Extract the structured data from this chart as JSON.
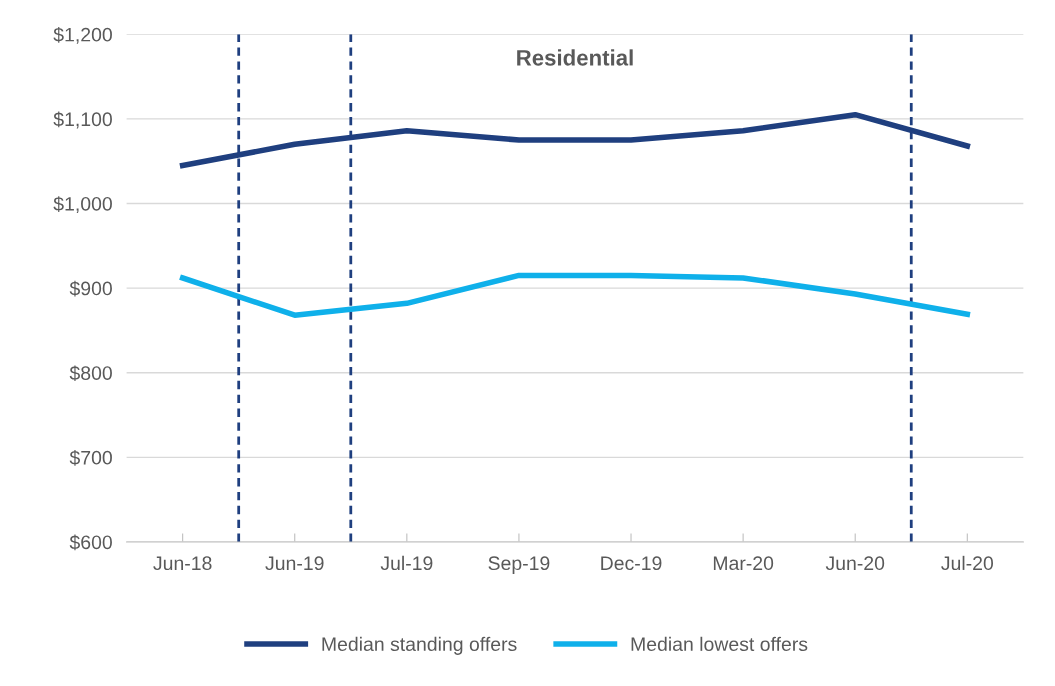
{
  "chart_data": {
    "type": "line",
    "title": "Residential",
    "categories": [
      "Jun-18",
      "Jun-19",
      "Jul-19",
      "Sep-19",
      "Dec-19",
      "Mar-20",
      "Jun-20",
      "Jul-20"
    ],
    "series": [
      {
        "name": "Median standing offers",
        "color": "#1f3f7f",
        "values": [
          1045,
          1070,
          1086,
          1075,
          1075,
          1086,
          1105,
          1068
        ]
      },
      {
        "name": "Median lowest offers",
        "color": "#0fb0ea",
        "values": [
          912,
          868,
          882,
          915,
          915,
          912,
          893,
          869
        ]
      }
    ],
    "ylim": [
      600,
      1200
    ],
    "yticks": [
      {
        "value": 600,
        "label": "$600"
      },
      {
        "value": 700,
        "label": "$700"
      },
      {
        "value": 800,
        "label": "$800"
      },
      {
        "value": 900,
        "label": "$900"
      },
      {
        "value": 1000,
        "label": "$1,000"
      },
      {
        "value": 1100,
        "label": "$1,100"
      },
      {
        "value": 1200,
        "label": "$1,200"
      }
    ],
    "grid": "y",
    "legend": "bottom",
    "marker": "none",
    "line_style": "solid"
  }
}
